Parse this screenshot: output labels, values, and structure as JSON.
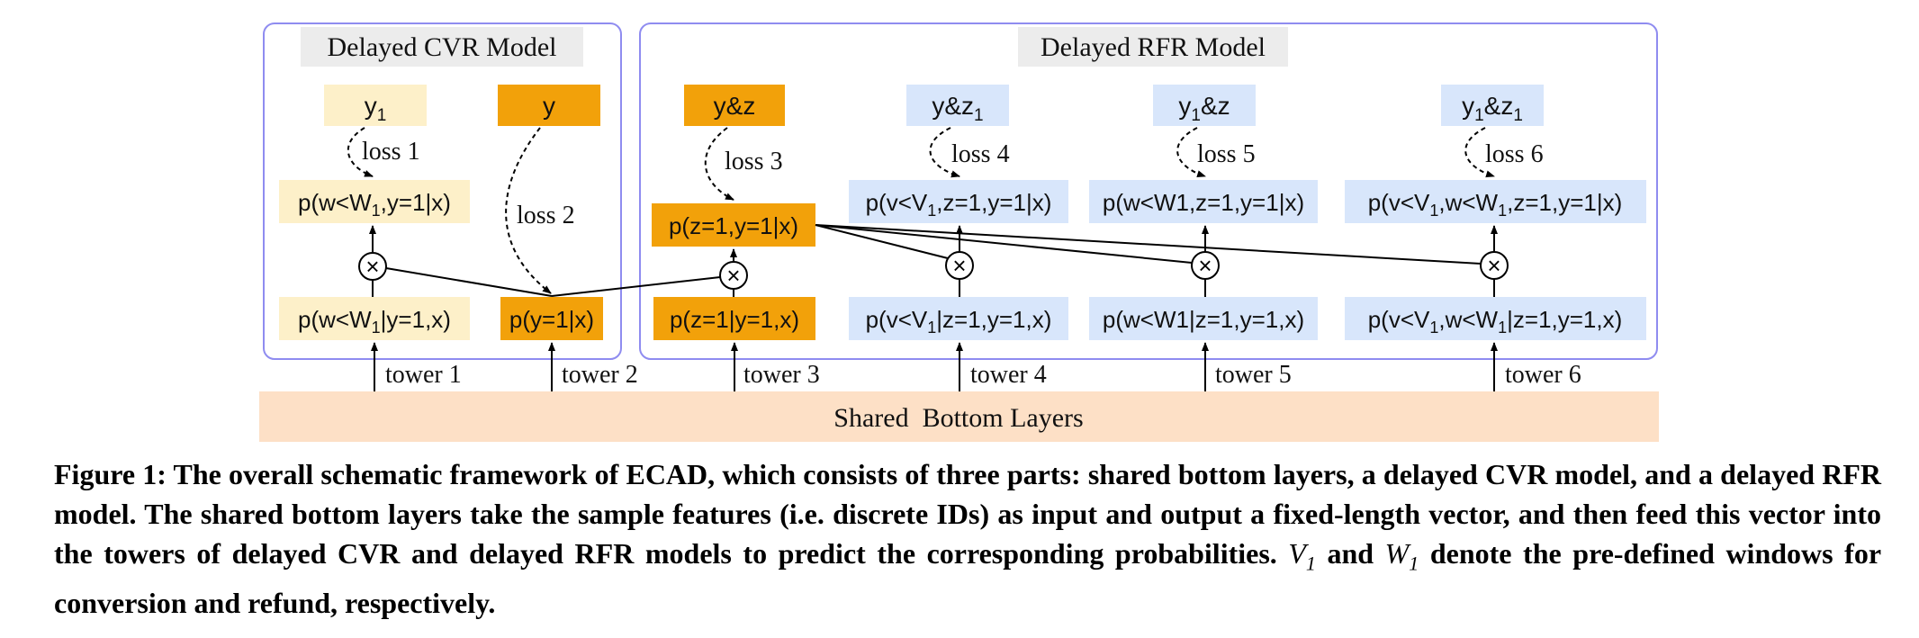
{
  "colors": {
    "panel_border": "#8f8cf0",
    "title_bg": "#ececec",
    "cream": "#fdf0c9",
    "orange": "#f2a10a",
    "blue": "#d8e6fb",
    "shared": "#fde0c6"
  },
  "cvr": {
    "title": "Delayed CVR Model",
    "label_y1": "y1",
    "label_y": "y",
    "p_w_y": "p(w<W1,y=1|x)",
    "p_w_given": "p(w<W1|y=1,x)",
    "p_y": "p(y=1|x)",
    "loss1": "loss 1",
    "loss2": "loss 2"
  },
  "rfr": {
    "title": "Delayed RFR Model",
    "label_yz": "y&z",
    "label_yz1": "y&z1",
    "label_y1z": "y1&z",
    "label_y1z1": "y1&z1",
    "p_zy": "p(z=1,y=1|x)",
    "p_z_given": "p(z=1|y=1,x)",
    "p_v_zy": "p(v<V1,z=1,y=1|x)",
    "p_v_given": "p(v<V1|z=1,y=1,x)",
    "p_w_zy": "p(w<W1,z=1,y=1|x)",
    "p_w_given": "p(w<W1|z=1,y=1,x)",
    "p_vw_zy": "p(v<V1,w<W1,z=1,y=1|x)",
    "p_vw_given": "p(v<V1,w<W1|z=1,y=1,x)",
    "loss3": "loss 3",
    "loss4": "loss 4",
    "loss5": "loss 5",
    "loss6": "loss 6"
  },
  "towers": [
    "tower 1",
    "tower 2",
    "tower 3",
    "tower 4",
    "tower 5",
    "tower 6"
  ],
  "shared_label": "Shared  Bottom Layers",
  "multiply_symbol": "×",
  "caption": {
    "figure_label": "Figure 1:",
    "text_before": "The overall schematic framework of ECAD, which consists of three parts: shared bottom layers, a delayed CVR model, and a delayed RFR model. The shared bottom layers take the sample features (i.e. discrete IDs) as input and output a fixed-length vector, and then feed this vector into the towers of delayed CVR and delayed RFR models to predict the corresponding probabilities.",
    "v1": "V1",
    "and_word": "and",
    "w1": "W1",
    "text_after": "denote the pre-defined windows for conversion and refund, respectively."
  }
}
